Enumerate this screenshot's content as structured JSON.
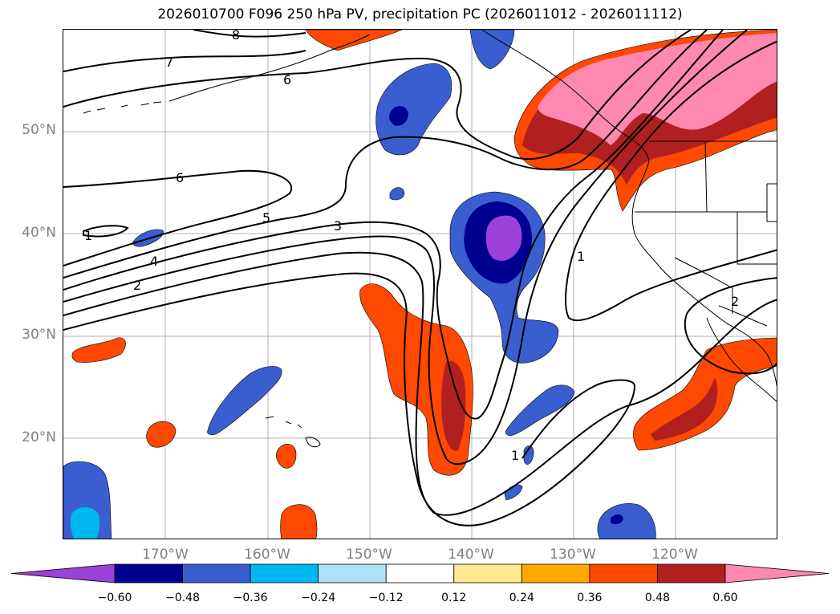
{
  "title": "2026010700 F096 250 hPa PV, precipitation PC (2026011012 - 2026011112)",
  "colors": {
    "precip_neg": [
      "#9b40d8",
      "#000090",
      "#3a5ed0",
      "#00b8f0",
      "#aee0f8"
    ],
    "precip_pos": [
      "#ffe890",
      "#ffa800",
      "#ff4800",
      "#b02020",
      "#ff88b0"
    ],
    "neutral": "#ffffff",
    "contour": "#000000",
    "grid": "#b0b0b0"
  },
  "lat_labels": [
    "50°N",
    "40°N",
    "30°N",
    "20°N"
  ],
  "lon_labels": [
    "170°W",
    "160°W",
    "150°W",
    "140°W",
    "130°W",
    "120°W"
  ],
  "contour_labels": [
    "8",
    "7",
    "6",
    "6",
    "5",
    "4",
    "3",
    "2",
    "1",
    "1",
    "1",
    "2"
  ],
  "colorbar": {
    "ticks": [
      "−0.60",
      "−0.48",
      "−0.36",
      "−0.24",
      "−0.12",
      "0.12",
      "0.24",
      "0.36",
      "0.48",
      "0.60"
    ],
    "bins": [
      "#9b40d8",
      "#000090",
      "#3a5ed0",
      "#00b8f0",
      "#aee0f8",
      "#ffffff",
      "#ffe890",
      "#ffa800",
      "#ff4800",
      "#b02020",
      "#ff88b0"
    ]
  }
}
